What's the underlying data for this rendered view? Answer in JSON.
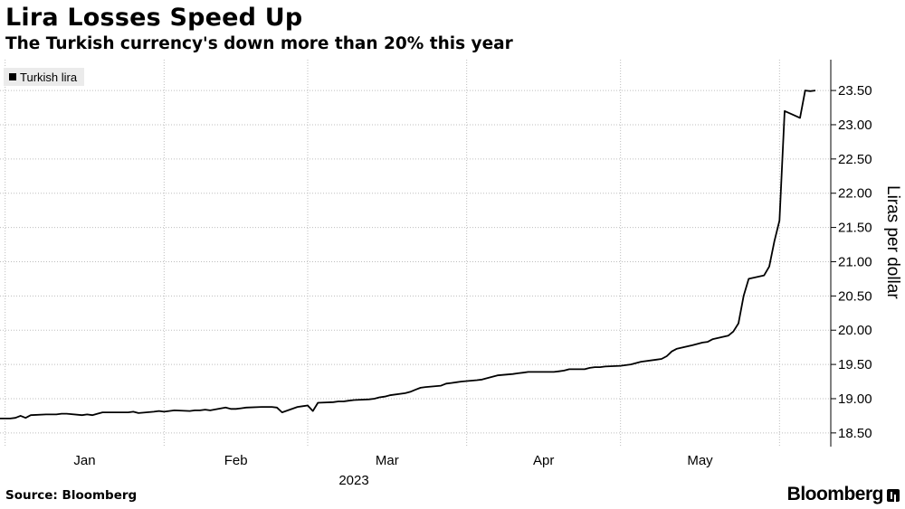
{
  "chart_data": {
    "type": "line",
    "title": "Lira Losses Speed Up",
    "subtitle": "The Turkish currency's down more than 20% this year",
    "ylabel": "Liras per dollar",
    "xlabel_year": "2023",
    "ylim": [
      18.3,
      23.95
    ],
    "y_ticks": [
      "18.50",
      "19.00",
      "19.50",
      "20.00",
      "20.50",
      "21.00",
      "21.50",
      "22.00",
      "22.50",
      "23.00",
      "23.50"
    ],
    "x_ticks": [
      "Jan",
      "Feb",
      "Mar",
      "Apr",
      "May"
    ],
    "grid": true,
    "legend_position": "top-left",
    "series": [
      {
        "name": "Turkish lira",
        "color": "#000000",
        "x": [
          "2022-12-30",
          "2023-01-02",
          "2023-01-03",
          "2023-01-04",
          "2023-01-05",
          "2023-01-06",
          "2023-01-09",
          "2023-01-10",
          "2023-01-11",
          "2023-01-12",
          "2023-01-13",
          "2023-01-16",
          "2023-01-17",
          "2023-01-18",
          "2023-01-19",
          "2023-01-20",
          "2023-01-23",
          "2023-01-24",
          "2023-01-25",
          "2023-01-26",
          "2023-01-27",
          "2023-01-30",
          "2023-01-31",
          "2023-02-01",
          "2023-02-02",
          "2023-02-03",
          "2023-02-06",
          "2023-02-07",
          "2023-02-08",
          "2023-02-09",
          "2023-02-10",
          "2023-02-13",
          "2023-02-14",
          "2023-02-15",
          "2023-02-16",
          "2023-02-17",
          "2023-02-20",
          "2023-02-21",
          "2023-02-22",
          "2023-02-23",
          "2023-02-24",
          "2023-02-27",
          "2023-02-28",
          "2023-03-01",
          "2023-03-02",
          "2023-03-03",
          "2023-03-06",
          "2023-03-07",
          "2023-03-08",
          "2023-03-09",
          "2023-03-10",
          "2023-03-13",
          "2023-03-14",
          "2023-03-15",
          "2023-03-16",
          "2023-03-17",
          "2023-03-20",
          "2023-03-21",
          "2023-03-22",
          "2023-03-23",
          "2023-03-24",
          "2023-03-27",
          "2023-03-28",
          "2023-03-29",
          "2023-03-30",
          "2023-03-31",
          "2023-04-03",
          "2023-04-04",
          "2023-04-05",
          "2023-04-06",
          "2023-04-07",
          "2023-04-10",
          "2023-04-11",
          "2023-04-12",
          "2023-04-13",
          "2023-04-14",
          "2023-04-17",
          "2023-04-18",
          "2023-04-19",
          "2023-04-20",
          "2023-04-21",
          "2023-04-24",
          "2023-04-25",
          "2023-04-26",
          "2023-04-27",
          "2023-04-28",
          "2023-05-01",
          "2023-05-02",
          "2023-05-03",
          "2023-05-04",
          "2023-05-05",
          "2023-05-08",
          "2023-05-09",
          "2023-05-10",
          "2023-05-11",
          "2023-05-12",
          "2023-05-15",
          "2023-05-16",
          "2023-05-17",
          "2023-05-18",
          "2023-05-19",
          "2023-05-22",
          "2023-05-23",
          "2023-05-24",
          "2023-05-25",
          "2023-05-26",
          "2023-05-29",
          "2023-05-30",
          "2023-05-31",
          "2023-06-01",
          "2023-06-02",
          "2023-06-05",
          "2023-06-06",
          "2023-06-07",
          "2023-06-08"
        ],
        "values": [
          18.71,
          18.71,
          18.72,
          18.75,
          18.72,
          18.76,
          18.77,
          18.77,
          18.77,
          18.78,
          18.78,
          18.76,
          18.77,
          18.76,
          18.78,
          18.8,
          18.8,
          18.8,
          18.8,
          18.81,
          18.79,
          18.81,
          18.82,
          18.81,
          18.82,
          18.83,
          18.82,
          18.83,
          18.83,
          18.84,
          18.83,
          18.87,
          18.85,
          18.85,
          18.86,
          18.87,
          18.88,
          18.88,
          18.88,
          18.87,
          18.8,
          18.88,
          18.89,
          18.9,
          18.82,
          18.94,
          18.95,
          18.96,
          18.96,
          18.97,
          18.98,
          18.99,
          19.0,
          19.02,
          19.03,
          19.05,
          19.08,
          19.1,
          19.13,
          19.16,
          19.17,
          19.19,
          19.22,
          19.23,
          19.24,
          19.25,
          19.27,
          19.28,
          19.3,
          19.32,
          19.34,
          19.36,
          19.37,
          19.38,
          19.39,
          19.39,
          19.39,
          19.39,
          19.4,
          19.41,
          19.43,
          19.43,
          19.45,
          19.46,
          19.46,
          19.47,
          19.48,
          19.49,
          19.5,
          19.52,
          19.54,
          19.57,
          19.58,
          19.62,
          19.69,
          19.73,
          19.78,
          19.8,
          19.82,
          19.83,
          19.87,
          19.92,
          19.98,
          20.1,
          20.5,
          20.75,
          20.8,
          20.93,
          21.3,
          21.6,
          23.2,
          23.1,
          23.5,
          23.49,
          23.5
        ]
      }
    ]
  },
  "source": "Source: Bloomberg",
  "brand": "Bloomberg"
}
